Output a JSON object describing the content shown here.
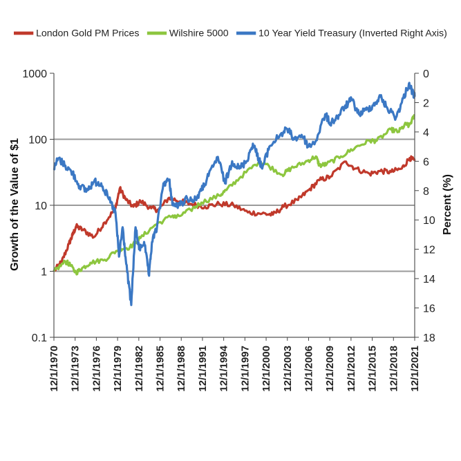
{
  "chart_data": {
    "type": "line",
    "title": "",
    "ylabel": "Growth of the Value of $1",
    "y2label": "Percent (%)",
    "y_scale": "log",
    "ylim": [
      0.1,
      1000
    ],
    "y_ticks": [
      "1000",
      "100",
      "10",
      "1",
      "0.1"
    ],
    "y2_inverted": true,
    "y2lim": [
      0,
      18
    ],
    "y2_ticks": [
      "0",
      "2",
      "4",
      "6",
      "8",
      "10",
      "12",
      "14",
      "16",
      "18"
    ],
    "x_ticks": [
      "12/1/1970",
      "12/1/1973",
      "12/1/1976",
      "12/1/1979",
      "12/1/1982",
      "12/1/1985",
      "12/1/1988",
      "12/1/1991",
      "12/1/1994",
      "12/1/1997",
      "12/1/2000",
      "12/1/2003",
      "12/1/2006",
      "12/1/2009",
      "12/1/2012",
      "12/1/2015",
      "12/1/2018",
      "12/1/2021"
    ],
    "grid": "horizontal",
    "legend_position": "top",
    "series": [
      {
        "name": "London Gold PM Prices",
        "color": "#c0392b",
        "axis": "left",
        "x": [
          1970.9,
          1972.0,
          1973.0,
          1973.5,
          1974.0,
          1975.0,
          1976.5,
          1978.0,
          1979.5,
          1980.1,
          1981.0,
          1982.0,
          1983.0,
          1984.5,
          1985.5,
          1987.0,
          1988.5,
          1990.0,
          1992.0,
          1994.0,
          1996.0,
          1998.0,
          2000.0,
          2001.5,
          2003.0,
          2005.0,
          2006.5,
          2008.0,
          2009.5,
          2011.7,
          2013.0,
          2015.0,
          2016.5,
          2018.0,
          2019.5,
          2020.6,
          2021.3
        ],
        "values": [
          1.0,
          1.4,
          2.6,
          3.5,
          4.8,
          4.2,
          3.3,
          5.5,
          9.0,
          18.0,
          12.0,
          9.5,
          11.5,
          9.0,
          8.5,
          13.0,
          11.5,
          10.5,
          9.5,
          10.5,
          10.0,
          7.8,
          7.5,
          7.2,
          9.5,
          12.0,
          17.0,
          24.0,
          27.0,
          46.0,
          36.0,
          30.0,
          33.0,
          32.0,
          36.0,
          52.0,
          47.0
        ]
      },
      {
        "name": "Wilshire 5000",
        "color": "#8dc63f",
        "axis": "left",
        "x": [
          1970.9,
          1972.5,
          1973.0,
          1974.0,
          1974.8,
          1976.0,
          1978.0,
          1980.0,
          1981.5,
          1983.0,
          1985.0,
          1987.5,
          1988.0,
          1990.0,
          1991.5,
          1994.0,
          1995.0,
          1997.0,
          1999.5,
          2000.5,
          2002.8,
          2004.0,
          2006.0,
          2007.5,
          2008.0,
          2009.0,
          2011.0,
          2013.0,
          2015.0,
          2016.0,
          2018.0,
          2019.0,
          2020.1,
          2020.5,
          2021.3
        ],
        "values": [
          1.0,
          1.4,
          1.3,
          0.95,
          1.1,
          1.35,
          1.5,
          2.2,
          2.3,
          3.2,
          5.0,
          7.0,
          6.5,
          8.5,
          11.0,
          14.0,
          17.0,
          27.0,
          45.0,
          42.0,
          29.0,
          36.0,
          45.0,
          55.0,
          40.0,
          42.0,
          55.0,
          75.0,
          95.0,
          95.0,
          140.0,
          130.0,
          170.0,
          160.0,
          230.0
        ]
      },
      {
        "name": "10 Year Yield Treasury (Inverted Right Axis)",
        "color": "#3b78c4",
        "axis": "right",
        "x": [
          1970.9,
          1971.5,
          1972.5,
          1973.5,
          1974.5,
          1975.5,
          1976.5,
          1977.5,
          1978.5,
          1979.5,
          1980.0,
          1980.5,
          1981.0,
          1981.7,
          1982.3,
          1982.8,
          1983.5,
          1984.2,
          1984.6,
          1985.3,
          1986.2,
          1987.0,
          1987.5,
          1988.5,
          1989.5,
          1990.5,
          1991.5,
          1992.5,
          1993.8,
          1994.8,
          1995.8,
          1996.8,
          1997.8,
          1998.7,
          1999.5,
          2000.0,
          2001.0,
          2002.5,
          2003.5,
          2004.5,
          2005.5,
          2006.5,
          2007.5,
          2008.8,
          2009.5,
          2010.5,
          2011.5,
          2012.5,
          2013.5,
          2014.5,
          2015.5,
          2016.5,
          2017.5,
          2018.7,
          2019.5,
          2020.5,
          2021.0,
          2021.3
        ],
        "values": [
          6.5,
          5.8,
          6.3,
          6.8,
          7.7,
          8.0,
          7.4,
          7.5,
          8.5,
          9.5,
          12.5,
          10.5,
          13.0,
          15.8,
          10.5,
          12.0,
          11.5,
          13.8,
          11.5,
          10.5,
          7.5,
          7.3,
          9.0,
          9.0,
          8.5,
          8.7,
          8.0,
          7.0,
          5.7,
          7.5,
          6.0,
          6.5,
          6.0,
          4.8,
          5.8,
          6.5,
          5.0,
          4.2,
          3.8,
          4.5,
          4.2,
          5.0,
          4.6,
          2.8,
          3.4,
          3.0,
          2.3,
          1.8,
          2.8,
          2.5,
          2.2,
          1.6,
          2.4,
          3.0,
          2.0,
          0.7,
          1.3,
          1.6
        ]
      }
    ]
  }
}
